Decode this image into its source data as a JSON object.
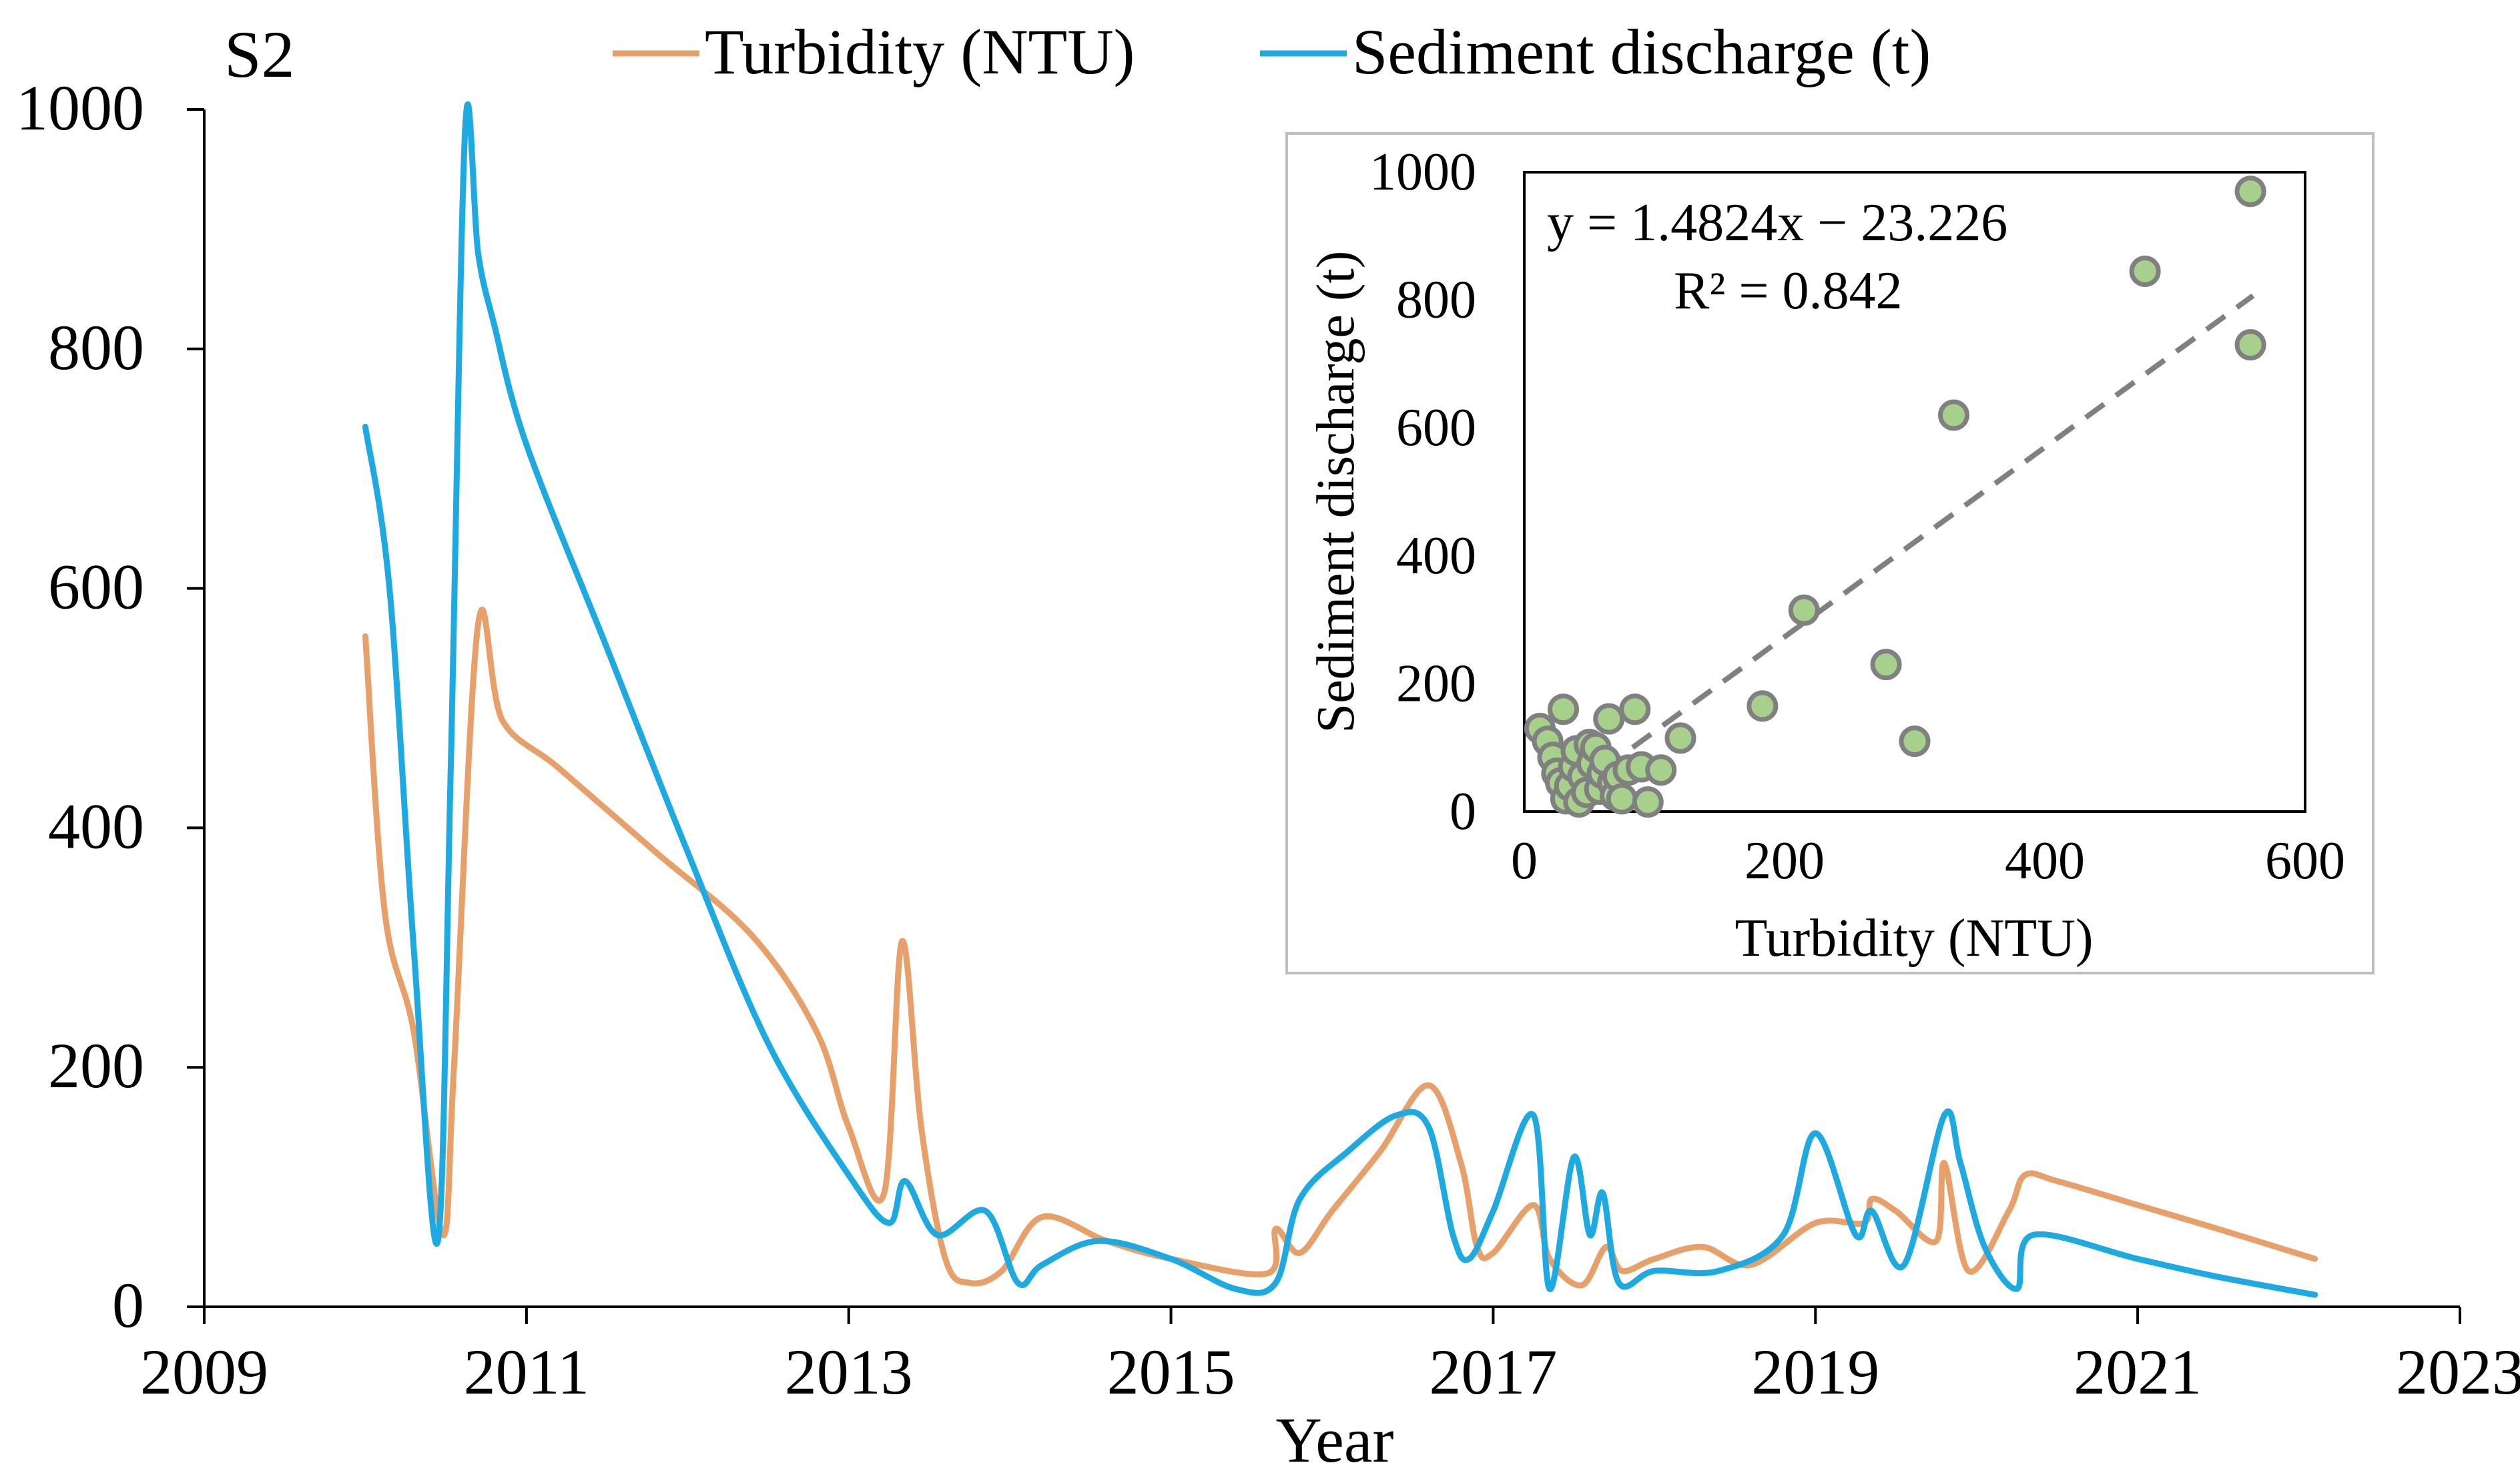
{
  "chart_data": [
    {
      "type": "line",
      "panel_label": "S2",
      "xlabel": "Year",
      "ylabel": "",
      "xlim": [
        2009,
        2023
      ],
      "ylim": [
        0,
        1000
      ],
      "x_ticks": [
        "2009",
        "2011",
        "2013",
        "2015",
        "2017",
        "2019",
        "2021",
        "2023"
      ],
      "y_ticks": [
        "0",
        "200",
        "400",
        "600",
        "800",
        "1000"
      ],
      "legend_position": "top-center",
      "series": [
        {
          "name": "Turbidity (NTU)",
          "color": "#E8A06A",
          "x": [
            2010.0,
            2010.12,
            2010.3,
            2010.48,
            2010.55,
            2010.7,
            2010.85,
            2011.2,
            2011.8,
            2012.4,
            2012.8,
            2013.0,
            2013.22,
            2013.33,
            2013.45,
            2013.6,
            2013.75,
            2013.95,
            2014.2,
            2014.6,
            2015.0,
            2015.6,
            2015.65,
            2015.8,
            2016.0,
            2016.3,
            2016.6,
            2016.8,
            2016.9,
            2017.0,
            2017.25,
            2017.35,
            2017.55,
            2017.7,
            2017.8,
            2018.0,
            2018.3,
            2018.6,
            2019.0,
            2019.3,
            2019.35,
            2019.5,
            2019.75,
            2019.8,
            2019.95,
            2020.2,
            2020.3,
            2020.5,
            2021.0,
            2021.5,
            2022.1
          ],
          "values": [
            560,
            330,
            230,
            60,
            200,
            570,
            490,
            450,
            380,
            310,
            230,
            150,
            95,
            305,
            150,
            40,
            20,
            30,
            75,
            55,
            40,
            28,
            65,
            45,
            80,
            130,
            185,
            120,
            50,
            45,
            85,
            40,
            18,
            50,
            30,
            40,
            50,
            35,
            70,
            70,
            90,
            80,
            55,
            120,
            30,
            80,
            110,
            105,
            85,
            65,
            40
          ]
        },
        {
          "name": "Sediment discharge (t)",
          "color": "#1EAAE0",
          "x": [
            2010.0,
            2010.15,
            2010.3,
            2010.45,
            2010.53,
            2010.62,
            2010.7,
            2010.8,
            2011.0,
            2011.5,
            2012.0,
            2012.5,
            2013.0,
            2013.25,
            2013.35,
            2013.55,
            2013.85,
            2014.05,
            2014.2,
            2014.55,
            2015.0,
            2015.4,
            2015.65,
            2015.8,
            2016.1,
            2016.4,
            2016.6,
            2016.75,
            2016.85,
            2017.0,
            2017.25,
            2017.35,
            2017.5,
            2017.6,
            2017.68,
            2017.78,
            2018.0,
            2018.4,
            2018.8,
            2019.0,
            2019.25,
            2019.35,
            2019.55,
            2019.8,
            2019.9,
            2020.05,
            2020.25,
            2020.35,
            2021.0,
            2021.5,
            2022.1
          ],
          "values": [
            735,
            600,
            300,
            55,
            450,
            985,
            880,
            820,
            720,
            550,
            380,
            220,
            110,
            70,
            105,
            60,
            80,
            20,
            35,
            55,
            40,
            15,
            20,
            90,
            130,
            160,
            150,
            60,
            40,
            80,
            160,
            15,
            125,
            60,
            95,
            20,
            30,
            30,
            60,
            145,
            60,
            80,
            35,
            160,
            120,
            50,
            15,
            60,
            40,
            25,
            10
          ]
        }
      ]
    },
    {
      "type": "scatter",
      "inset": true,
      "xlabel": "Turbidity (NTU)",
      "ylabel": "Sediment discharge (t)",
      "xlim": [
        0,
        600
      ],
      "ylim": [
        0,
        1000
      ],
      "x_ticks": [
        "0",
        "200",
        "400",
        "600"
      ],
      "y_ticks": [
        "0",
        "200",
        "400",
        "600",
        "800",
        "1000"
      ],
      "annotation": [
        "y = 1.4824x − 23.226",
        "R² = 0.842"
      ],
      "trendline": {
        "slope": 1.4824,
        "intercept": -23.226,
        "x_range": [
          60,
          560
        ],
        "style": "dashed",
        "color": "#808080"
      },
      "point_color": "#A8D08D",
      "point_edge_color": "#808080",
      "x": [
        12,
        18,
        22,
        25,
        28,
        30,
        32,
        35,
        38,
        40,
        42,
        45,
        48,
        50,
        52,
        55,
        58,
        60,
        62,
        65,
        68,
        70,
        72,
        75,
        80,
        85,
        90,
        95,
        105,
        120,
        183,
        215,
        278,
        300,
        330,
        477,
        558,
        558
      ],
      "y": [
        130,
        110,
        85,
        60,
        45,
        160,
        20,
        40,
        70,
        95,
        15,
        55,
        30,
        105,
        75,
        100,
        35,
        60,
        80,
        145,
        45,
        25,
        55,
        20,
        65,
        160,
        70,
        15,
        65,
        115,
        165,
        315,
        230,
        110,
        620,
        845,
        970,
        730
      ]
    }
  ]
}
